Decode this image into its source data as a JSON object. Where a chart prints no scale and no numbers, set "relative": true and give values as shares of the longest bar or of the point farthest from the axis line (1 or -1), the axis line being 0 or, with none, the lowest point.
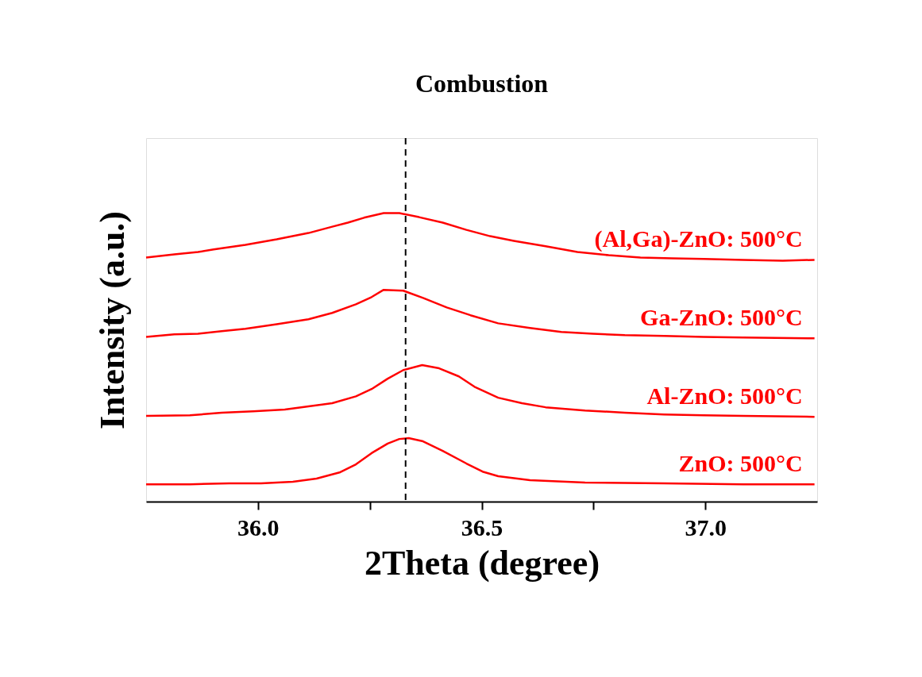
{
  "chart_data": {
    "type": "line",
    "title": "Combustion",
    "xlabel": "2Theta (degree)",
    "ylabel": "Intensity (a.u.)",
    "relative": true,
    "xlim": [
      35.75,
      37.25
    ],
    "xticks": [
      {
        "value": 36.0,
        "label": "36.0"
      },
      {
        "value": 36.25,
        "label": null
      },
      {
        "value": 36.5,
        "label": "36.5"
      },
      {
        "value": 36.75,
        "label": null
      },
      {
        "value": 37.0,
        "label": "37.0"
      }
    ],
    "grid": false,
    "legend": false,
    "marker": "none",
    "line_style": "solid",
    "ref_lines": [
      {
        "axis": "x",
        "value": 36.33,
        "color": "#000000",
        "line_style": "dashed"
      }
    ],
    "series": [
      {
        "name": "ZnO: 500°C",
        "color": "#ff0000",
        "x": [
          35.75,
          35.848,
          35.936,
          36.007,
          36.078,
          36.131,
          36.184,
          36.219,
          36.254,
          36.29,
          36.316,
          36.337,
          36.369,
          36.413,
          36.466,
          36.502,
          36.537,
          36.608,
          36.731,
          36.908,
          37.085,
          37.244
        ],
        "values": [
          0.06,
          0.06,
          0.063,
          0.063,
          0.069,
          0.08,
          0.102,
          0.129,
          0.168,
          0.201,
          0.217,
          0.22,
          0.209,
          0.176,
          0.132,
          0.104,
          0.088,
          0.074,
          0.066,
          0.063,
          0.06,
          0.06
        ]
      },
      {
        "name": "Al-ZnO: 500°C",
        "color": "#ff0000",
        "x": [
          35.75,
          35.848,
          35.919,
          35.989,
          36.06,
          36.113,
          36.166,
          36.219,
          36.254,
          36.29,
          36.325,
          36.367,
          36.405,
          36.449,
          36.484,
          36.537,
          36.59,
          36.643,
          36.731,
          36.82,
          36.908,
          36.996,
          37.085,
          37.244
        ],
        "values": [
          0.297,
          0.299,
          0.308,
          0.313,
          0.319,
          0.33,
          0.341,
          0.365,
          0.39,
          0.426,
          0.456,
          0.473,
          0.462,
          0.434,
          0.398,
          0.36,
          0.341,
          0.327,
          0.316,
          0.308,
          0.302,
          0.299,
          0.297,
          0.294
        ]
      },
      {
        "name": "Ga-ZnO: 500°C",
        "color": "#ff0000",
        "x": [
          35.75,
          35.813,
          35.866,
          35.919,
          35.972,
          36.042,
          36.113,
          36.166,
          36.219,
          36.254,
          36.281,
          36.325,
          36.369,
          36.422,
          36.475,
          36.537,
          36.608,
          36.678,
          36.749,
          36.82,
          36.908,
          36.996,
          37.085,
          37.244
        ],
        "values": [
          0.571,
          0.58,
          0.582,
          0.591,
          0.599,
          0.615,
          0.632,
          0.654,
          0.684,
          0.709,
          0.734,
          0.731,
          0.706,
          0.673,
          0.646,
          0.618,
          0.602,
          0.588,
          0.582,
          0.577,
          0.574,
          0.571,
          0.569,
          0.566
        ]
      },
      {
        "name": "(Al,Ga)-ZnO: 500°C",
        "color": "#ff0000",
        "x": [
          35.75,
          35.813,
          35.866,
          35.901,
          35.972,
          36.042,
          36.113,
          36.166,
          36.201,
          36.237,
          36.281,
          36.316,
          36.36,
          36.413,
          36.466,
          36.519,
          36.572,
          36.643,
          36.714,
          36.784,
          36.855,
          36.926,
          36.996,
          37.085,
          37.173,
          37.244
        ],
        "values": [
          0.846,
          0.857,
          0.865,
          0.874,
          0.89,
          0.909,
          0.931,
          0.953,
          0.967,
          0.984,
          1.0,
          1.0,
          0.986,
          0.967,
          0.942,
          0.92,
          0.904,
          0.885,
          0.865,
          0.854,
          0.846,
          0.843,
          0.841,
          0.838,
          0.835,
          0.838
        ]
      }
    ]
  }
}
